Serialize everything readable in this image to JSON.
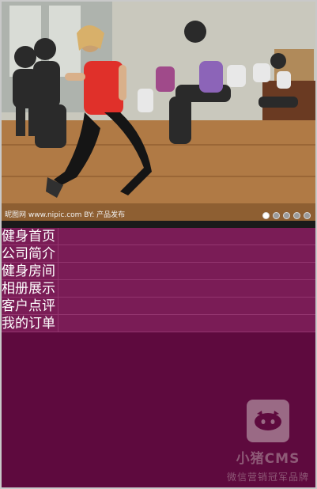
{
  "slider": {
    "image_desc": "dancers-jumping-photo",
    "photo_watermark": "昵图网 www.nipic.com    BY: 产品发布",
    "dot_count": 5,
    "active_dot": 0
  },
  "menu": {
    "items": [
      {
        "label": "健身首页"
      },
      {
        "label": "公司简介"
      },
      {
        "label": "健身房间"
      },
      {
        "label": "相册展示"
      },
      {
        "label": "客户点评"
      },
      {
        "label": "我的订单"
      }
    ]
  },
  "watermark": {
    "name": "小猪CMS",
    "tagline": "微信营销冠军品牌"
  },
  "colors": {
    "page_bg": "#5e0a3e",
    "menu_bg": "#7a1c56",
    "menu_border": "#93356f",
    "text": "#ffffff"
  }
}
